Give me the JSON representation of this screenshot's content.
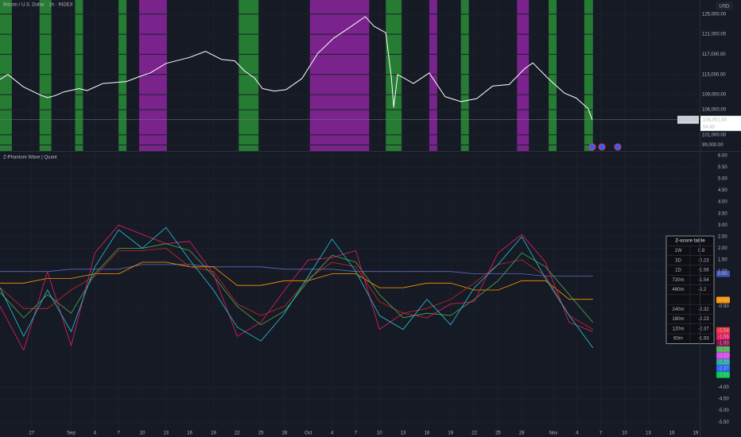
{
  "header": {
    "title": "Bitcoin / U.S. Dollar · 1h · INDEX",
    "currency": "USD"
  },
  "x_axis": {
    "xlim": [
      -9,
      79.5
    ],
    "ticks": [
      {
        "value": -5,
        "label": "27"
      },
      {
        "value": 0,
        "label": "Sep"
      },
      {
        "value": 3,
        "label": "4"
      },
      {
        "value": 6,
        "label": "7"
      },
      {
        "value": 9,
        "label": "10"
      },
      {
        "value": 12,
        "label": "13"
      },
      {
        "value": 15,
        "label": "16"
      },
      {
        "value": 18,
        "label": "19"
      },
      {
        "value": 21,
        "label": "22"
      },
      {
        "value": 24,
        "label": "25"
      },
      {
        "value": 27,
        "label": "28"
      },
      {
        "value": 30,
        "label": "Oct"
      },
      {
        "value": 33,
        "label": "4"
      },
      {
        "value": 36,
        "label": "7"
      },
      {
        "value": 39,
        "label": "10"
      },
      {
        "value": 42,
        "label": "13"
      },
      {
        "value": 45,
        "label": "16"
      },
      {
        "value": 48,
        "label": "19"
      },
      {
        "value": 51,
        "label": "22"
      },
      {
        "value": 54,
        "label": "25"
      },
      {
        "value": 57,
        "label": "28"
      },
      {
        "value": 61,
        "label": "Nov"
      },
      {
        "value": 64,
        "label": "4"
      },
      {
        "value": 67,
        "label": "7"
      },
      {
        "value": 70,
        "label": "10"
      },
      {
        "value": 73,
        "label": "13"
      },
      {
        "value": 76,
        "label": "16"
      },
      {
        "value": 79,
        "label": "19"
      }
    ]
  },
  "price_pane": {
    "type": "line",
    "symbol": "BTCUSD",
    "last_price": {
      "value": 104001.5,
      "label": "104,001.50"
    },
    "countdown": "04:45",
    "ylim": [
      97800,
      127800
    ],
    "yticks": [
      {
        "value": 125000,
        "label": "125,000.00"
      },
      {
        "value": 121000,
        "label": "121,000.00"
      },
      {
        "value": 117000,
        "label": "117,000.00"
      },
      {
        "value": 113000,
        "label": "113,000.00"
      },
      {
        "value": 109000,
        "label": "109,000.00"
      },
      {
        "value": 106000,
        "label": "106,000.00"
      },
      {
        "value": 101000,
        "label": "101,000.00"
      },
      {
        "value": 99000,
        "label": "99,000.00"
      }
    ],
    "color": "#ffffff",
    "x": [
      -9,
      -8,
      -6,
      -4,
      -3,
      -2,
      -1,
      1,
      2,
      4,
      7,
      9,
      10,
      12,
      15,
      17,
      19,
      20.7,
      22,
      23.2,
      24.2,
      25.7,
      27.2,
      29.2,
      31.2,
      33.2,
      35.2,
      37.2,
      38.3,
      39.8,
      40.5,
      40.8,
      41.3,
      43.3,
      45.3,
      47.3,
      49.3,
      51.3,
      53.3,
      55.4,
      57.4,
      58.4,
      60.4,
      62.4,
      63.9,
      65.4,
      65.9
    ],
    "values": [
      112000,
      113000,
      110500,
      109000,
      108400,
      108800,
      109500,
      110200,
      109800,
      111200,
      111600,
      112800,
      113300,
      115200,
      116400,
      117600,
      116000,
      115700,
      113600,
      112300,
      110200,
      109700,
      110000,
      112200,
      117200,
      120200,
      122300,
      124500,
      122600,
      121300,
      112500,
      106500,
      113000,
      111200,
      113300,
      108600,
      107600,
      108200,
      110700,
      111000,
      114200,
      115300,
      112100,
      109300,
      108300,
      106200,
      104000
    ],
    "bands": [
      {
        "from": -9,
        "to": -7.5,
        "color": "#2e9e3a"
      },
      {
        "from": -4,
        "to": -2.5,
        "color": "#2e9e3a"
      },
      {
        "from": 0.5,
        "to": 1.5,
        "color": "#2e9e3a"
      },
      {
        "from": 6,
        "to": 7,
        "color": "#2e9e3a"
      },
      {
        "from": 8.6,
        "to": 12.1,
        "color": "#9c27b0"
      },
      {
        "from": 21.2,
        "to": 23.7,
        "color": "#2e9e3a"
      },
      {
        "from": 30.2,
        "to": 37.7,
        "color": "#9c27b0"
      },
      {
        "from": 39.8,
        "to": 41.8,
        "color": "#2e9e3a"
      },
      {
        "from": 45.3,
        "to": 46.3,
        "color": "#9c27b0"
      },
      {
        "from": 49.3,
        "to": 50.3,
        "color": "#2e9e3a"
      },
      {
        "from": 56.4,
        "to": 57.9,
        "color": "#9c27b0"
      },
      {
        "from": 60.4,
        "to": 61.4,
        "color": "#2e9e3a"
      },
      {
        "from": 64.9,
        "to": 66,
        "color": "#2e9e3a"
      }
    ]
  },
  "indicator_pane": {
    "type": "line",
    "title": "Z-Phantom Wave | Quant",
    "ylim": [
      -5.8,
      6.2
    ],
    "yticks": [
      {
        "value": 6,
        "label": "6.00"
      },
      {
        "value": 5.5,
        "label": "5.50"
      },
      {
        "value": 5,
        "label": "5.00"
      },
      {
        "value": 4.5,
        "label": "4.50"
      },
      {
        "value": 4,
        "label": "4.00"
      },
      {
        "value": 3.5,
        "label": "3.50"
      },
      {
        "value": 3,
        "label": "3.00"
      },
      {
        "value": 2.5,
        "label": "2.50"
      },
      {
        "value": 2,
        "label": "2.00"
      },
      {
        "value": 1.5,
        "label": "1.50"
      },
      {
        "value": 1,
        "label": "1.00"
      },
      {
        "value": -0.5,
        "label": "-0.50"
      },
      {
        "value": -4,
        "label": "-4.00"
      },
      {
        "value": -4.5,
        "label": "-4.50"
      },
      {
        "value": -5,
        "label": "-5.00"
      },
      {
        "value": -5.5,
        "label": "-5.50"
      }
    ],
    "x": [
      -9,
      -6,
      -3,
      0,
      3,
      6,
      9,
      12,
      15,
      18,
      21,
      24,
      27,
      30,
      33,
      36,
      39,
      42,
      45,
      48,
      51,
      54,
      57,
      60,
      63,
      66
    ],
    "series": [
      {
        "color": "#5c6bc0",
        "values": [
          1.0,
          1.0,
          1.0,
          1.1,
          1.1,
          1.1,
          1.3,
          1.3,
          1.3,
          1.2,
          1.2,
          1.2,
          1.1,
          1.1,
          1.1,
          1.0,
          1.0,
          1.0,
          1.0,
          1.0,
          0.9,
          0.9,
          0.9,
          0.8,
          0.8,
          0.8
        ]
      },
      {
        "color": "#ff9800",
        "values": [
          0.5,
          0.5,
          0.7,
          0.7,
          0.9,
          0.9,
          1.4,
          1.4,
          1.2,
          1.2,
          0.4,
          0.4,
          0.6,
          0.6,
          0.9,
          0.9,
          0.3,
          0.3,
          0.5,
          0.5,
          0.2,
          0.2,
          0.6,
          0.6,
          -0.2,
          -0.2
        ]
      },
      {
        "color": "#c62828",
        "values": [
          0.3,
          -0.6,
          -0.6,
          0.2,
          0.8,
          1.9,
          1.9,
          2.0,
          1.2,
          1.0,
          -0.4,
          -0.9,
          -0.5,
          0.7,
          1.4,
          1.2,
          -0.3,
          -0.8,
          -0.6,
          -0.2,
          0.5,
          1.3,
          1.5,
          0.8,
          -0.9,
          -1.5
        ]
      },
      {
        "color": "#4caf50",
        "values": [
          0.1,
          -1.0,
          0.0,
          -0.8,
          0.9,
          2.0,
          2.0,
          2.2,
          1.9,
          0.8,
          -0.5,
          -1.3,
          -0.7,
          0.6,
          1.7,
          1.4,
          0.0,
          -1.0,
          -0.8,
          -0.9,
          -0.2,
          0.6,
          1.8,
          1.2,
          0.0,
          -1.2
        ]
      },
      {
        "color": "#e91e63",
        "values": [
          -0.5,
          -2.4,
          1.0,
          -2.2,
          1.8,
          3.0,
          2.6,
          2.2,
          2.3,
          0.9,
          -1.8,
          -1.2,
          0.2,
          1.5,
          1.6,
          1.9,
          -1.5,
          -0.8,
          -1.0,
          -0.4,
          -0.3,
          1.8,
          2.6,
          1.4,
          -1.2,
          -1.6
        ]
      },
      {
        "color": "#26c6da",
        "values": [
          0.3,
          -1.8,
          0.2,
          -1.6,
          1.2,
          2.8,
          2.0,
          2.9,
          1.5,
          0.2,
          -1.4,
          -2.0,
          -0.8,
          0.8,
          2.4,
          1.0,
          -0.9,
          -1.5,
          -0.2,
          -1.3,
          0.3,
          1.3,
          2.5,
          0.7,
          -0.9,
          -2.3
        ]
      }
    ],
    "value_labels": [
      {
        "value": 0.9,
        "label": "0.90",
        "color": "#3f51b5"
      },
      {
        "value": -0.23,
        "label": "-0.23",
        "color": "#ff9800"
      },
      {
        "value": -1.54,
        "label": "-1.54",
        "color": "#f23645"
      },
      {
        "value": -1.56,
        "label": "-1.56",
        "color": "#e91e63"
      },
      {
        "value": -1.93,
        "label": "-1.93",
        "color": "#880e4f"
      },
      {
        "value": -2.2,
        "label": "-2.20",
        "color": "#4caf50"
      },
      {
        "value": -2.23,
        "label": "-2.23",
        "color": "#e040fb"
      },
      {
        "value": -2.32,
        "label": "-2.32",
        "color": "#26a69a"
      },
      {
        "value": -2.37,
        "label": "-2.37",
        "color": "#2962ff"
      },
      {
        "value": -2.51,
        "label": "-2.51",
        "color": "#00c853"
      }
    ],
    "table": {
      "title": "Z-score table",
      "rows": [
        {
          "label": "1W",
          "value": "0.8",
          "color": "#5c6bc0"
        },
        {
          "label": "3D",
          "value": "-0.23",
          "color": "#ff9800"
        },
        {
          "label": "1D",
          "value": "-1.56",
          "color": "#b71c1c"
        },
        {
          "label": "720m",
          "value": "-1.54",
          "color": "#f44336"
        },
        {
          "label": "480m",
          "value": "-2.2",
          "color": "#4caf50"
        },
        {
          "label": "240m",
          "value": "-2.32",
          "color": "#26a69a"
        },
        {
          "label": "180m",
          "value": "-2.23",
          "color": "#e040fb"
        },
        {
          "label": "120m",
          "value": "-2.37",
          "color": "#00e676"
        },
        {
          "label": "60m",
          "value": "-1.93",
          "color": "#880e4f"
        }
      ]
    }
  }
}
